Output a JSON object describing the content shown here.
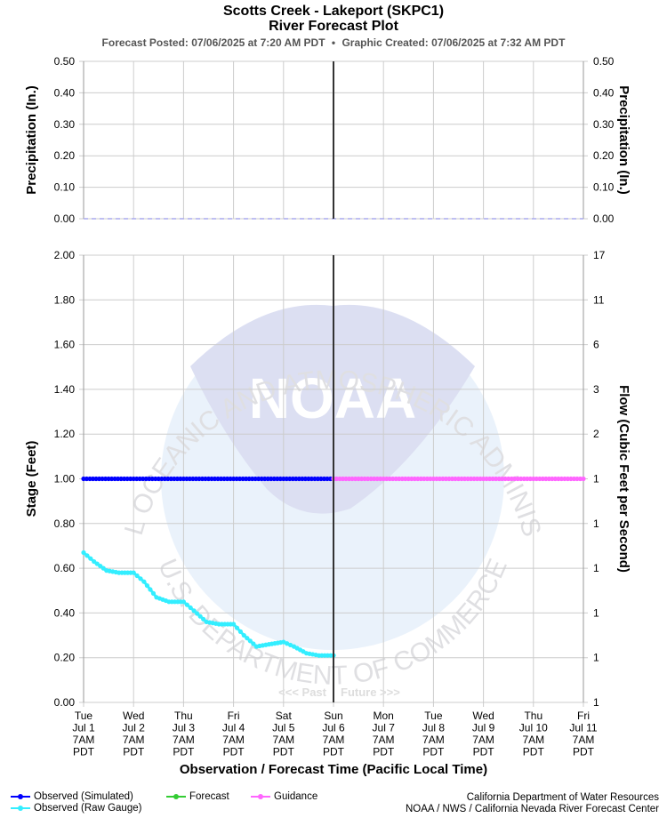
{
  "header": {
    "title": "Scotts Creek - Lakeport (SKPC1)",
    "subtitle": "River Forecast Plot",
    "posted": "Forecast Posted: 07/06/2025 at 7:20 AM PDT",
    "separator": "•",
    "created": "Graphic Created: 07/06/2025 at 7:32 AM PDT"
  },
  "watermark": {
    "logo_text": "NOAA",
    "ring_top": "NATIONAL OCEANIC AND ATMOSPHERIC ADMINISTRATION",
    "ring_bottom": "U.S. DEPARTMENT OF COMMERCE"
  },
  "past_label": "<<< Past",
  "future_label": "Future >>>",
  "footer": {
    "legend": [
      {
        "label": "Observed (Simulated)",
        "color": "#0000ff"
      },
      {
        "label": "Observed (Raw Gauge)",
        "color": "#33eeff"
      },
      {
        "label": "Forecast",
        "color": "#33cc33"
      },
      {
        "label": "Guidance",
        "color": "#ff66ff"
      }
    ],
    "credit1": "California Department of Water Resources",
    "credit2": "NOAA / NWS / California Nevada River Forecast Center"
  },
  "chart_data": [
    {
      "type": "line",
      "ylabel": "Precipitation (In.)",
      "ylabel_right": "Precipitation (In.)",
      "ylim": [
        0,
        0.5
      ],
      "yticks": [
        "0.00",
        "0.10",
        "0.20",
        "0.30",
        "0.40",
        "0.50"
      ],
      "yticks_right": [
        "0.00",
        "0.10",
        "0.20",
        "0.30",
        "0.40",
        "0.50"
      ],
      "grid": true,
      "series": [
        {
          "name": "Observed precipitation",
          "color": "#aaaaee",
          "dashed": true,
          "x": [
            "07/01 07:00",
            "07/06 07:00",
            "07/11 07:00"
          ],
          "y": [
            0.0,
            0.0,
            0.0
          ]
        }
      ]
    },
    {
      "type": "line",
      "ylabel": "Stage (Feet)",
      "ylabel_right": "Flow (Cubic Feet per Second)",
      "xlabel": "Observation / Forecast Time (Pacific Local Time)",
      "ylim": [
        0,
        2.0
      ],
      "yticks": [
        "0.00",
        "0.20",
        "0.40",
        "0.60",
        "0.80",
        "1.00",
        "1.20",
        "1.40",
        "1.60",
        "1.80",
        "2.00"
      ],
      "yticks_right": [
        "1",
        "1",
        "1",
        "1",
        "1",
        "1",
        "2",
        "3",
        "6",
        "11",
        "17"
      ],
      "grid": true,
      "x_tick_labels": [
        [
          "Tue",
          "Jul 1",
          "7AM",
          "PDT"
        ],
        [
          "Wed",
          "Jul 2",
          "7AM",
          "PDT"
        ],
        [
          "Thu",
          "Jul 3",
          "7AM",
          "PDT"
        ],
        [
          "Fri",
          "Jul 4",
          "7AM",
          "PDT"
        ],
        [
          "Sat",
          "Jul 5",
          "7AM",
          "PDT"
        ],
        [
          "Sun",
          "Jul 6",
          "7AM",
          "PDT"
        ],
        [
          "Mon",
          "Jul 7",
          "7AM",
          "PDT"
        ],
        [
          "Tue",
          "Jul 8",
          "7AM",
          "PDT"
        ],
        [
          "Wed",
          "Jul 9",
          "7AM",
          "PDT"
        ],
        [
          "Thu",
          "Jul 10",
          "7AM",
          "PDT"
        ],
        [
          "Fri",
          "Jul 11",
          "7AM",
          "PDT"
        ]
      ],
      "now": "07/06 07:00",
      "series": [
        {
          "name": "Observed (Simulated)",
          "color": "#0000ff",
          "x": [
            "07/01 07:00",
            "07/06 07:00"
          ],
          "y": [
            1.0,
            1.0
          ]
        },
        {
          "name": "Guidance",
          "color": "#ff66ff",
          "x": [
            "07/06 07:00",
            "07/11 07:00"
          ],
          "y": [
            1.0,
            1.0
          ]
        },
        {
          "name": "Observed (Raw Gauge)",
          "color": "#33eeff",
          "x": [
            "07/01 07:00",
            "07/01 12:00",
            "07/01 18:00",
            "07/02 00:00",
            "07/02 07:00",
            "07/02 12:00",
            "07/02 18:00",
            "07/03 00:00",
            "07/03 07:00",
            "07/03 12:00",
            "07/03 18:00",
            "07/04 00:00",
            "07/04 07:00",
            "07/04 12:00",
            "07/04 18:00",
            "07/05 00:00",
            "07/05 07:00",
            "07/05 12:00",
            "07/05 18:00",
            "07/06 00:00",
            "07/06 07:00"
          ],
          "y": [
            0.67,
            0.63,
            0.59,
            0.58,
            0.58,
            0.54,
            0.47,
            0.45,
            0.45,
            0.41,
            0.36,
            0.35,
            0.35,
            0.3,
            0.25,
            0.26,
            0.27,
            0.25,
            0.22,
            0.21,
            0.21
          ]
        }
      ]
    }
  ]
}
